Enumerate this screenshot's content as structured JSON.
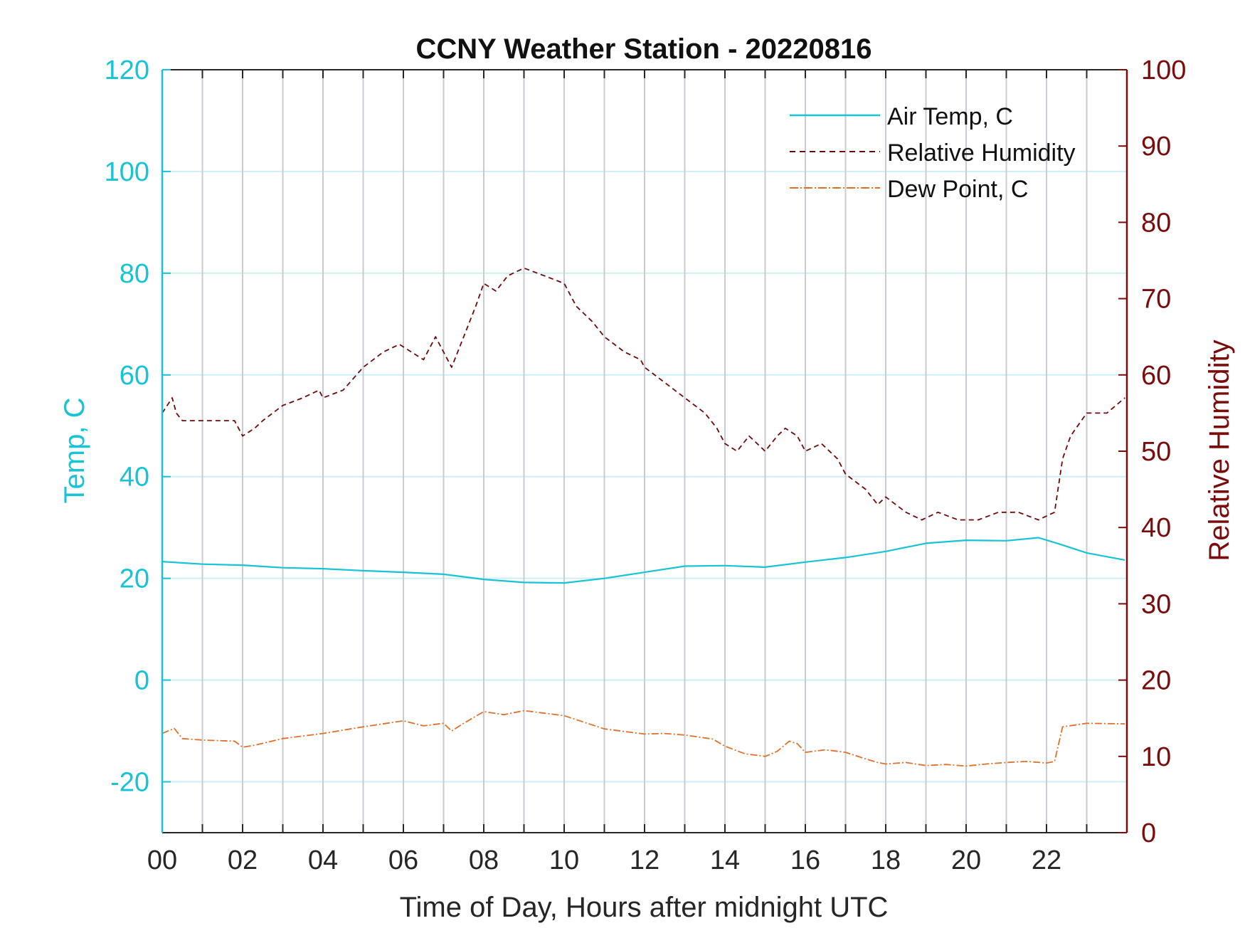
{
  "chart_data": {
    "type": "line",
    "title": "CCNY Weather Station - 20220816",
    "xlabel": "Time of Day, Hours after midnight UTC",
    "ylabel_left": "Temp, C",
    "ylabel_right": "Relative Humidity",
    "xlim": [
      0,
      24
    ],
    "ylim_left": [
      -30,
      120
    ],
    "ylim_right": [
      0,
      100
    ],
    "x_ticks": [
      0,
      2,
      4,
      6,
      8,
      10,
      12,
      14,
      16,
      18,
      20,
      22
    ],
    "x_tick_labels": [
      "00",
      "02",
      "04",
      "06",
      "08",
      "10",
      "12",
      "14",
      "16",
      "18",
      "20",
      "22"
    ],
    "y_left_ticks": [
      -20,
      0,
      20,
      40,
      60,
      80,
      100,
      120
    ],
    "y_left_tick_labels": [
      "-20",
      "0",
      "20",
      "40",
      "60",
      "80",
      "100",
      "120"
    ],
    "y_right_ticks": [
      0,
      10,
      20,
      30,
      40,
      50,
      60,
      70,
      80,
      90,
      100
    ],
    "y_right_tick_labels": [
      "0",
      "10",
      "20",
      "30",
      "40",
      "50",
      "60",
      "70",
      "80",
      "90",
      "100"
    ],
    "grid": true,
    "legend_position": "top-right",
    "colors": {
      "temp": "#17c3d6",
      "rh": "#6e0a0a",
      "dew": "#e0702a",
      "right_axis": "#7a0c0c",
      "grid_vertical": "#c8ccd2",
      "grid_horizontal": "#cdeff4"
    },
    "series": [
      {
        "name": "Air Temp, C",
        "axis": "left",
        "style": "solid",
        "x": [
          0,
          1,
          2,
          3,
          4,
          5,
          6,
          7,
          8,
          9,
          10,
          11,
          12,
          13,
          14,
          15,
          16,
          17,
          18,
          19,
          20,
          21,
          21.8,
          22.3,
          23,
          23.95
        ],
        "values": [
          23.3,
          22.8,
          22.6,
          22.1,
          21.9,
          21.5,
          21.2,
          20.8,
          19.8,
          19.2,
          19.1,
          20.0,
          21.2,
          22.4,
          22.5,
          22.2,
          23.2,
          24.1,
          25.3,
          26.9,
          27.5,
          27.4,
          28.0,
          26.8,
          25.0,
          23.6
        ]
      },
      {
        "name": "Relative Humidity",
        "axis": "right",
        "style": "dashed",
        "x": [
          0,
          0.25,
          0.35,
          0.5,
          1.0,
          1.8,
          2.0,
          2.3,
          2.5,
          3.0,
          3.5,
          3.9,
          4.0,
          4.5,
          5.0,
          5.5,
          5.9,
          6.2,
          6.5,
          6.8,
          7.0,
          7.2,
          7.5,
          7.8,
          8.0,
          8.3,
          8.6,
          9.0,
          9.5,
          10.0,
          10.3,
          10.7,
          11.0,
          11.5,
          11.9,
          12.0,
          12.5,
          13.0,
          13.5,
          13.8,
          14.0,
          14.3,
          14.6,
          15.0,
          15.3,
          15.5,
          15.8,
          16.0,
          16.4,
          16.8,
          17.0,
          17.5,
          17.8,
          18.0,
          18.5,
          18.9,
          19.3,
          19.8,
          20.3,
          20.8,
          21.3,
          21.8,
          22.2,
          22.4,
          22.6,
          23.0,
          23.5,
          23.95
        ],
        "values": [
          55,
          57,
          55,
          54,
          54,
          54,
          52,
          53,
          54,
          56,
          57,
          58,
          57,
          58,
          61,
          63,
          64,
          63,
          62,
          65,
          63,
          61,
          65,
          69,
          72,
          71,
          73,
          74,
          73,
          72,
          69,
          67,
          65,
          63,
          62,
          61,
          59,
          57,
          55,
          53,
          51,
          50,
          52,
          50,
          52,
          53,
          52,
          50,
          51,
          49,
          47,
          45,
          43,
          44,
          42,
          41,
          42,
          41,
          41,
          42,
          42,
          41,
          42,
          49,
          52,
          55,
          55,
          57
        ]
      },
      {
        "name": "Dew Point, C",
        "axis": "left",
        "style": "dashdot",
        "x": [
          0,
          0.3,
          0.5,
          1.0,
          1.8,
          2.0,
          2.3,
          3.0,
          4.0,
          5.0,
          6.0,
          6.5,
          7.0,
          7.2,
          7.5,
          8.0,
          8.5,
          9.0,
          10.0,
          11.0,
          12.0,
          12.5,
          13.0,
          13.7,
          14.0,
          14.5,
          15.0,
          15.3,
          15.6,
          15.8,
          16.0,
          16.5,
          17.0,
          17.5,
          17.8,
          18.0,
          18.5,
          19.0,
          19.5,
          20.0,
          20.5,
          21.0,
          21.5,
          22.0,
          22.2,
          22.4,
          23.0,
          23.95
        ],
        "values": [
          -10.5,
          -9.5,
          -11.5,
          -11.8,
          -12.0,
          -13.2,
          -12.8,
          -11.5,
          -10.5,
          -9.2,
          -8.0,
          -9.0,
          -8.5,
          -10.0,
          -8.5,
          -6.2,
          -6.8,
          -6.0,
          -7.0,
          -9.6,
          -10.6,
          -10.5,
          -10.8,
          -11.6,
          -13.0,
          -14.5,
          -15.0,
          -14.0,
          -12.0,
          -12.5,
          -14.2,
          -13.7,
          -14.2,
          -15.5,
          -16.2,
          -16.5,
          -16.2,
          -16.8,
          -16.6,
          -16.9,
          -16.5,
          -16.2,
          -16.0,
          -16.3,
          -16.0,
          -9.2,
          -8.5,
          -8.6
        ]
      }
    ]
  }
}
